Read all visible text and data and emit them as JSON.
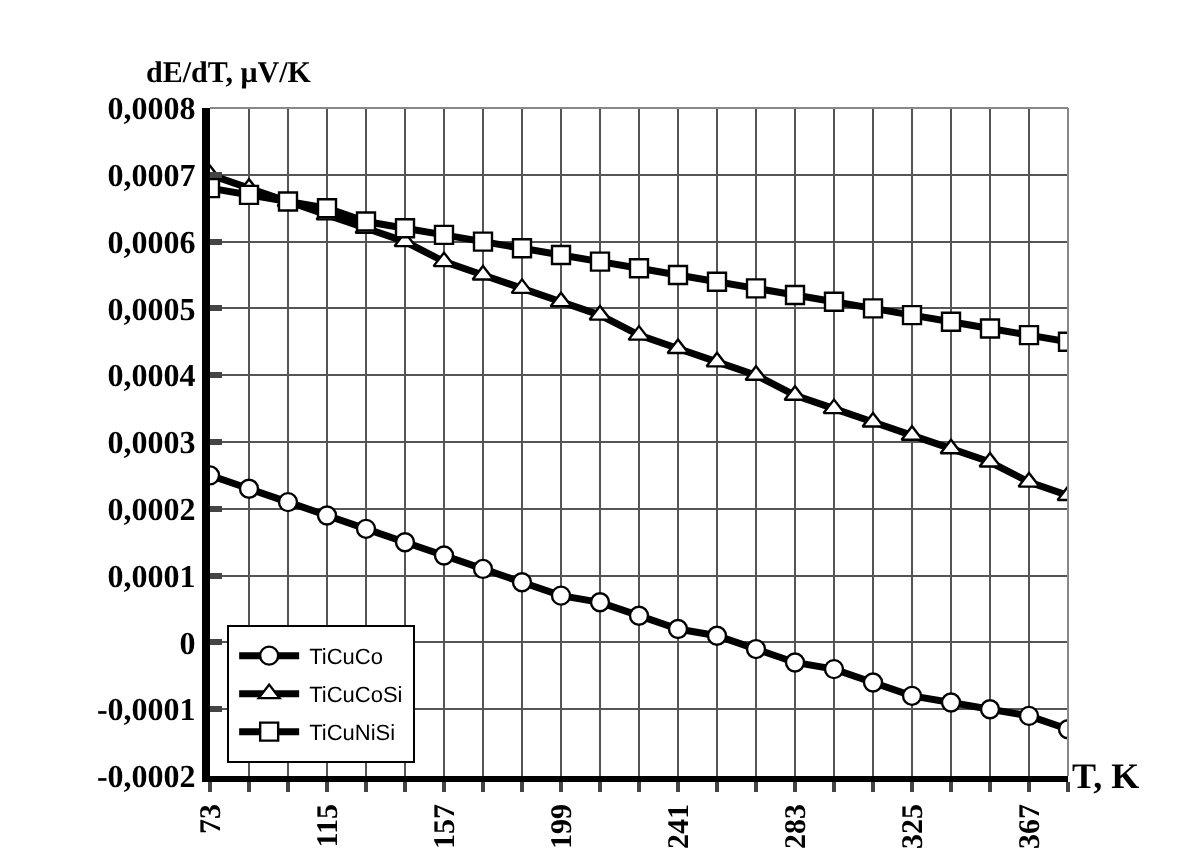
{
  "chart_data": {
    "type": "line",
    "xlabel": "T, K",
    "ylabel": "dE/dT, μV/K",
    "categories": [
      "73",
      null,
      null,
      "115",
      null,
      null,
      "157",
      null,
      null,
      "199",
      null,
      null,
      "241",
      null,
      null,
      "283",
      null,
      null,
      "325",
      null,
      null,
      "367",
      null
    ],
    "series": [
      {
        "name": "TiCuCo",
        "color": "#000000",
        "marker": "circle",
        "values": [
          0.00025,
          0.00023,
          0.00021,
          0.00019,
          0.00017,
          0.00015,
          0.00013,
          0.00011,
          9e-05,
          7e-05,
          6e-05,
          4e-05,
          2e-05,
          1e-05,
          -1e-05,
          -3e-05,
          -4e-05,
          -6e-05,
          -8e-05,
          -9e-05,
          -0.0001,
          -0.00011,
          -0.00013
        ]
      },
      {
        "name": "TiCuCoSi",
        "color": "#000000",
        "marker": "triangle",
        "values": [
          0.0007,
          0.00068,
          0.00066,
          0.00064,
          0.00062,
          0.0006,
          0.00057,
          0.00055,
          0.00053,
          0.00051,
          0.00049,
          0.00046,
          0.00044,
          0.00042,
          0.0004,
          0.00037,
          0.00035,
          0.00033,
          0.00031,
          0.00029,
          0.00027,
          0.00024,
          0.00022
        ]
      },
      {
        "name": "TiCuNiSi",
        "color": "#000000",
        "marker": "square",
        "values": [
          0.00068,
          0.00067,
          0.00066,
          0.00065,
          0.00063,
          0.00062,
          0.00061,
          0.0006,
          0.00059,
          0.00058,
          0.00057,
          0.00056,
          0.00055,
          0.00054,
          0.00053,
          0.00052,
          0.00051,
          0.0005,
          0.00049,
          0.00048,
          0.00047,
          0.00046,
          0.00045
        ]
      }
    ],
    "ylim": [
      -0.0002,
      0.0008
    ],
    "yticks": [
      {
        "value": -0.0002,
        "label": "-0,0002"
      },
      {
        "value": -0.0001,
        "label": "-0,0001"
      },
      0,
      {
        "value": 0.0001,
        "label": "0,0001"
      },
      {
        "value": 0.0002,
        "label": "0,0002"
      },
      {
        "value": 0.0003,
        "label": "0,0003"
      },
      {
        "value": 0.0004,
        "label": "0,0004"
      },
      {
        "value": 0.0005,
        "label": "0,0005"
      },
      {
        "value": 0.0006,
        "label": "0,0006"
      },
      {
        "value": 0.0007,
        "label": "0,0007"
      },
      {
        "value": 0.0008,
        "label": "0,0008"
      }
    ],
    "grid": true,
    "legend": "bottom left",
    "line_style": "solid"
  }
}
